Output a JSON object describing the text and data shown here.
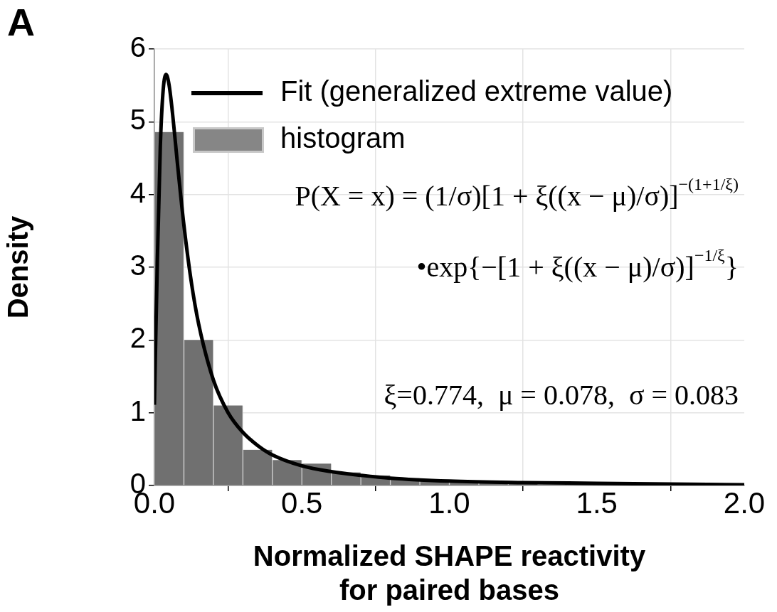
{
  "chart_data": {
    "type": "histogram",
    "xlabel": "Normalized SHAPE reactivity\nfor paired bases",
    "ylabel": "Density",
    "series": [
      {
        "name": "histogram",
        "color": "#707070",
        "bins": [
          0,
          0.1,
          0.2,
          0.3,
          0.4,
          0.5,
          0.6,
          0.7,
          0.8,
          0.9,
          1.0,
          1.1,
          1.2,
          1.3,
          1.4,
          1.5,
          1.6,
          1.7,
          1.8,
          1.9,
          2.0
        ],
        "values": [
          4.86,
          2.0,
          1.1,
          0.49,
          0.35,
          0.3,
          0.18,
          0.14,
          0.1,
          0.06,
          0.04,
          0.03,
          0.02,
          null,
          0.01,
          0.01,
          0.01,
          0.01,
          0.01,
          0.01
        ]
      },
      {
        "type": "line",
        "name": "Fit (generalized extreme value)",
        "color": "#000000",
        "x": [
          0,
          0.01,
          0.02,
          0.03,
          0.04,
          0.05,
          0.06,
          0.08,
          0.1,
          0.125,
          0.15,
          0.2,
          0.25,
          0.3,
          0.35,
          0.4,
          0.5,
          0.6,
          0.7,
          0.8,
          1.0,
          1.25,
          1.5,
          1.75,
          2.0
        ],
        "values": [
          1.11,
          3.09,
          4.66,
          5.45,
          5.65,
          5.5,
          5.17,
          4.35,
          3.58,
          2.8,
          2.22,
          1.45,
          1.0,
          0.73,
          0.55,
          0.42,
          0.27,
          0.19,
          0.14,
          0.1,
          0.06,
          0.04,
          0.03,
          0.02,
          0.01
        ]
      }
    ],
    "xlim": [
      0,
      2.0
    ],
    "xticks": [
      {
        "value": 0,
        "label": "0.0"
      },
      0.5,
      {
        "value": 1,
        "label": "1.0"
      },
      1.5,
      {
        "value": 2,
        "label": "2.0"
      }
    ],
    "ylim": [
      0,
      6
    ],
    "yticks": [
      0,
      1,
      2,
      3,
      4,
      5,
      6
    ],
    "grid": true,
    "legend": "top right",
    "marker": "none",
    "line_style": "solid",
    "annotations": [
      "A",
      "P(X = x) = (1/σ)[1 + ξ((x − μ)/σ)]$^{−(1+1/ξ)}$",
      "•exp{−[1 + ξ((x − μ)/σ)]$^{−1/ξ}$}",
      "ξ=0.774,  μ = 0.078,  σ = 0.083"
    ]
  }
}
